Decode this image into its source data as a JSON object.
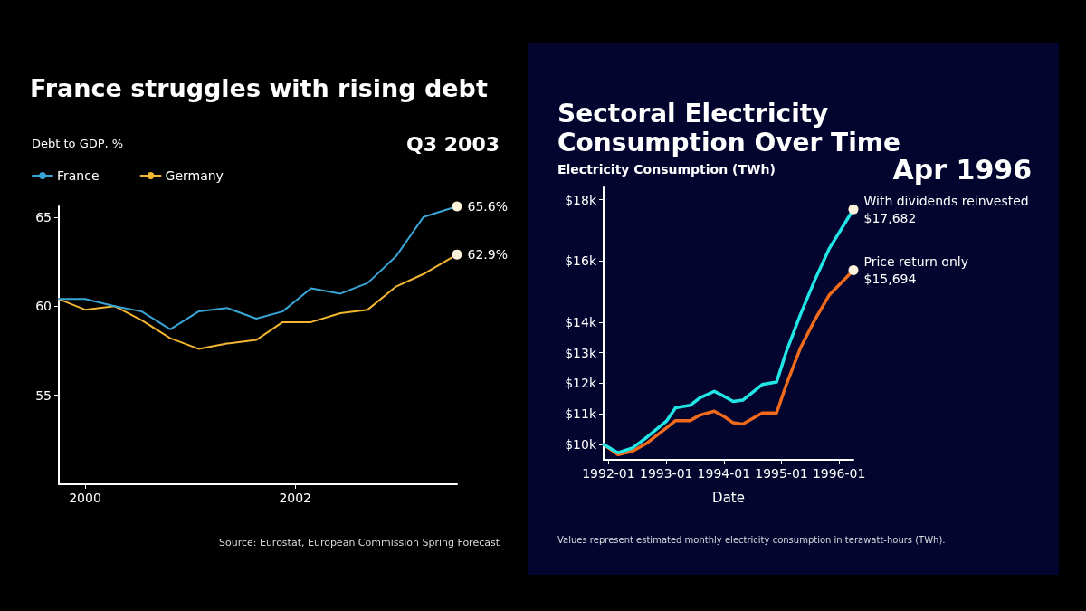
{
  "chart_data": [
    {
      "type": "line",
      "title": "France struggles with rising debt",
      "ylabel": "Debt to GDP, %",
      "annotations": [
        "Q3 2003",
        "Source: Eurostat, European Commission Spring Forecast"
      ],
      "x": [
        1999.75,
        2000.0,
        2000.28,
        2000.54,
        2000.81,
        2001.08,
        2001.35,
        2001.63,
        2001.88,
        2002.15,
        2002.43,
        2002.69,
        2002.96,
        2003.22,
        2003.54
      ],
      "series": [
        {
          "name": "France",
          "color": "#3aa6d8",
          "values": [
            60.4,
            60.4,
            60.0,
            59.7,
            58.7,
            59.7,
            59.9,
            59.3,
            59.7,
            61.0,
            60.7,
            61.3,
            62.8,
            65.0,
            65.6
          ],
          "value_labels": [
            null,
            null,
            null,
            null,
            null,
            null,
            null,
            null,
            null,
            null,
            null,
            null,
            null,
            null,
            "65.6%"
          ]
        },
        {
          "name": "Germany",
          "color": "#f2b632",
          "values": [
            60.4,
            59.8,
            60.0,
            59.2,
            58.2,
            57.6,
            57.9,
            58.1,
            59.1,
            59.1,
            59.6,
            59.8,
            61.1,
            61.8,
            62.9
          ],
          "value_labels": [
            null,
            null,
            null,
            null,
            null,
            null,
            null,
            null,
            null,
            null,
            null,
            null,
            null,
            null,
            "62.9%"
          ]
        }
      ],
      "xlim": [
        1999.75,
        2003.54
      ],
      "xticks": [
        2000,
        2002
      ],
      "ylim": [
        50,
        65.6
      ],
      "yticks": [
        55,
        60,
        65
      ],
      "grid": false,
      "legend": "top left",
      "marker": "none"
    },
    {
      "type": "line",
      "title": "Sectoral Electricity Consumption Over Time",
      "ylabel": "Electricity Consumption (TWh)",
      "xlabel": "Date",
      "annotations": [
        "Apr 1996",
        "Values represent estimated monthly electricity consumption in terawatt-hours (TWh)."
      ],
      "series": [
        {
          "name": "With dividends reinvested",
          "color": "#22e5e5",
          "x": [
            "1991-12",
            "1992-03",
            "1992-06",
            "1992-09",
            "1993-01",
            "1993-03",
            "1993-06",
            "1993-08",
            "1993-11",
            "1994-01",
            "1994-03",
            "1994-05",
            "1994-09",
            "1994-12",
            "1995-02",
            "1995-05",
            "1995-08",
            "1995-11",
            "1996-04"
          ],
          "values": [
            10000,
            9730,
            9890,
            10240,
            10760,
            11200,
            11280,
            11520,
            11740,
            11580,
            11410,
            11450,
            11960,
            12040,
            13040,
            14240,
            15380,
            16410,
            17682
          ],
          "value_labels": [
            null,
            null,
            null,
            null,
            null,
            null,
            null,
            null,
            null,
            null,
            null,
            null,
            null,
            null,
            null,
            null,
            null,
            null,
            "$17,682"
          ]
        },
        {
          "name": "Price return only",
          "color": "#f26a1b",
          "x": [
            "1991-12",
            "1992-03",
            "1992-06",
            "1992-09",
            "1993-01",
            "1993-03",
            "1993-06",
            "1993-08",
            "1993-11",
            "1994-01",
            "1994-03",
            "1994-05",
            "1994-09",
            "1994-12",
            "1995-02",
            "1995-05",
            "1995-08",
            "1995-11",
            "1996-04"
          ],
          "values": [
            10000,
            9670,
            9780,
            10050,
            10540,
            10780,
            10780,
            10960,
            11090,
            10920,
            10710,
            10670,
            11030,
            11030,
            11960,
            13150,
            14080,
            14890,
            15694
          ],
          "value_labels": [
            null,
            null,
            null,
            null,
            null,
            null,
            null,
            null,
            null,
            null,
            null,
            null,
            null,
            null,
            null,
            null,
            null,
            null,
            "$15,694"
          ]
        }
      ],
      "xlim": [
        "1991-12",
        "1996-04"
      ],
      "xticks": [
        "1992-01",
        "1993-01",
        "1994-01",
        "1995-01",
        "1996-01"
      ],
      "ylim": [
        9500,
        18400
      ],
      "yticks": [
        {
          "value": 10000,
          "label": "$10k"
        },
        {
          "value": 11000,
          "label": "$11k"
        },
        {
          "value": 12000,
          "label": "$12k"
        },
        {
          "value": 13000,
          "label": "$13k"
        },
        {
          "value": 14000,
          "label": "$14k"
        },
        {
          "value": 16000,
          "label": "$16k"
        },
        {
          "value": 18000,
          "label": "$18k"
        }
      ],
      "grid": false,
      "legend": false,
      "marker": "none"
    }
  ]
}
